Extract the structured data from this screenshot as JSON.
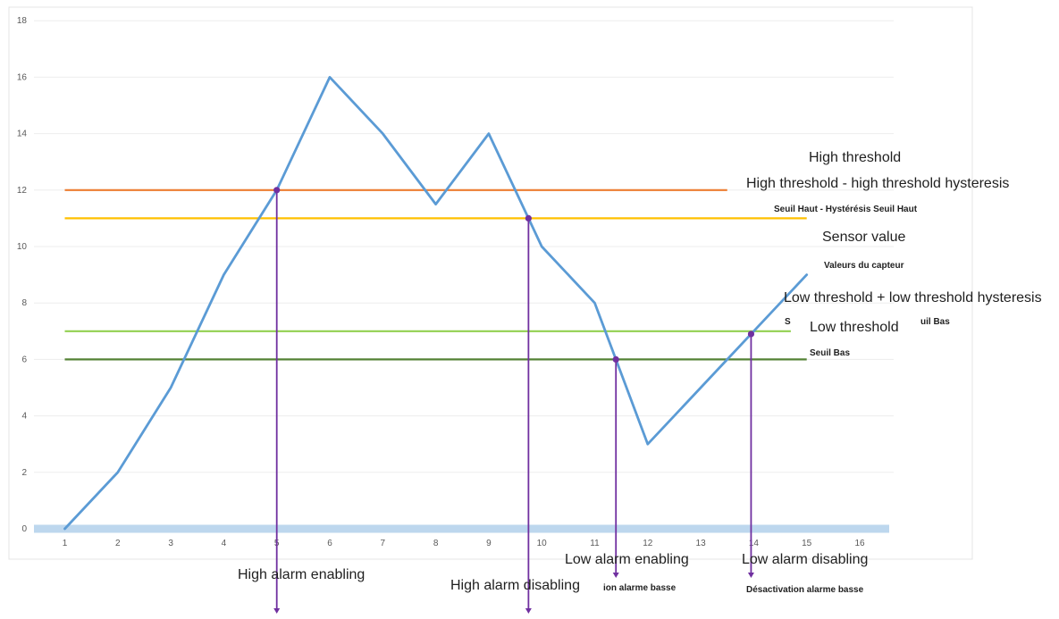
{
  "chart_data": {
    "type": "line",
    "x": [
      1,
      2,
      3,
      4,
      5,
      6,
      7,
      8,
      9,
      10,
      11,
      12,
      13,
      14,
      15
    ],
    "xticks": [
      "1",
      "2",
      "3",
      "4",
      "5",
      "6",
      "7",
      "8",
      "9",
      "10",
      "11",
      "12",
      "13",
      "14",
      "15",
      "16"
    ],
    "yticks": [
      "0",
      "2",
      "4",
      "6",
      "8",
      "10",
      "12",
      "14",
      "16",
      "18"
    ],
    "xlim": [
      1,
      16
    ],
    "ylim": [
      0,
      18
    ],
    "grid": "horizontal",
    "series": [
      {
        "name": "Sensor value",
        "color": "#5b9bd5",
        "values": [
          0,
          2,
          5,
          9,
          12,
          16,
          14,
          11.5,
          14,
          10,
          8,
          3,
          5,
          7,
          9
        ]
      }
    ],
    "thresholds": [
      {
        "name": "High threshold",
        "value": 12,
        "x_end": 13.5,
        "color": "#ed7d31"
      },
      {
        "name": "High threshold - high threshold hysteresis",
        "value": 11,
        "x_end": 15,
        "color": "#ffc000"
      },
      {
        "name": "Low threshold + low threshold hysteresis",
        "value": 7,
        "x_end": 14.7,
        "color": "#92d050"
      },
      {
        "name": "Low threshold",
        "value": 6,
        "x_end": 15,
        "color": "#548235"
      }
    ],
    "events": [
      {
        "x": 5,
        "y": 12,
        "label": "High alarm enabling"
      },
      {
        "x": 9.75,
        "y": 11,
        "label": "High alarm disabling"
      },
      {
        "x": 11.4,
        "y": 6,
        "label": "Low alarm enabling"
      },
      {
        "x": 13.95,
        "y": 6.9,
        "label": "Low alarm disabling"
      }
    ],
    "event_color": "#7030a0",
    "baseline_color": "#bdd7ee"
  },
  "annotations": {
    "high_threshold": "High threshold",
    "high_hyst": "High threshold - high threshold hysteresis",
    "high_hyst_fr": "Seuil Haut - Hystérésis Seuil Haut",
    "sensor_value": "Sensor value",
    "sensor_value_fr": "Valeurs du capteur",
    "low_hyst": "Low threshold + low threshold hysteresis",
    "low_hyst_fr_a": "S",
    "low_hyst_fr_b": "uil Bas",
    "low_threshold": "Low threshold",
    "low_threshold_fr": "Seuil Bas",
    "high_alarm_enabling": "High alarm enabling",
    "high_alarm_disabling": "High alarm disabling",
    "low_alarm_enabling": "Low alarm enabling",
    "low_alarm_enabling_fr": "ion alarme basse",
    "low_alarm_disabling": "Low alarm disabling",
    "low_alarm_disabling_fr": "Désactivation alarme basse"
  }
}
